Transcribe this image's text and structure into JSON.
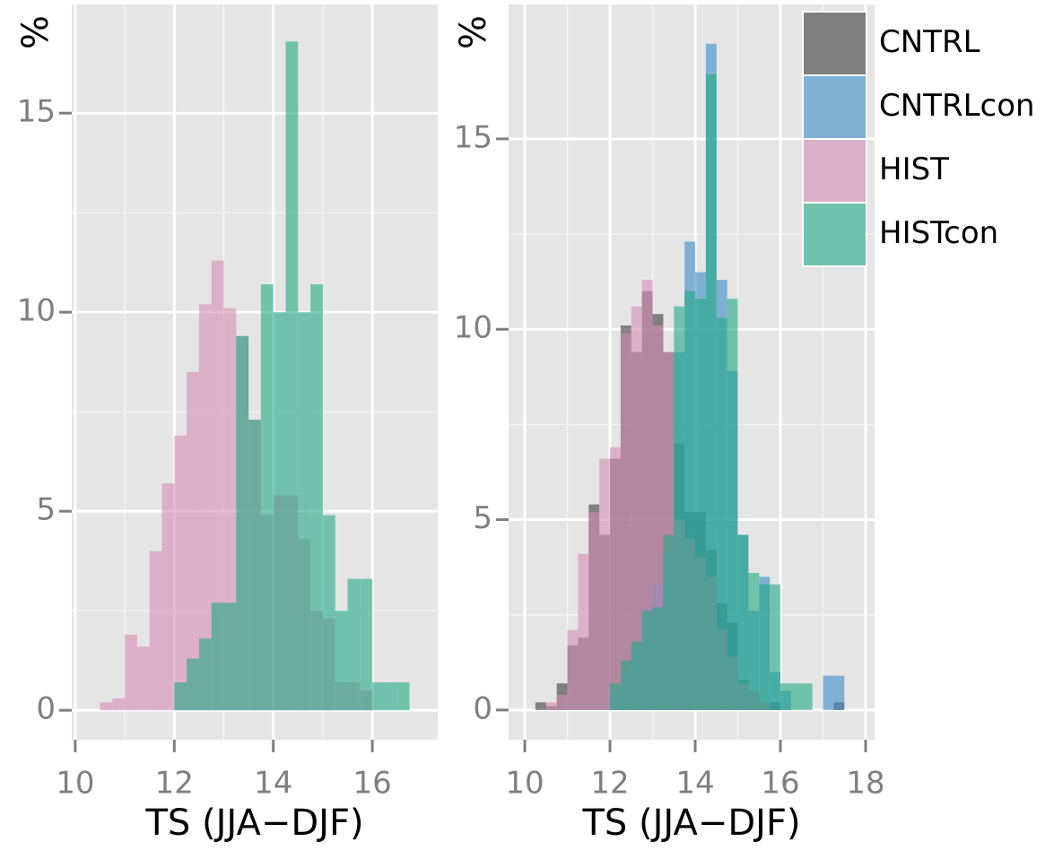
{
  "chart_data": [
    {
      "type": "histogram",
      "x_label": "TS (JJA−DJF)",
      "y_label": "%",
      "bins": [
        10.5,
        10.75,
        11,
        11.25,
        11.5,
        11.75,
        12,
        12.25,
        12.5,
        12.75,
        13,
        13.25,
        13.5,
        13.75,
        14,
        14.25,
        14.5,
        14.75,
        15,
        15.25,
        15.5,
        15.75,
        16,
        16.25,
        16.5,
        16.75
      ],
      "series": [
        {
          "color": "#d68cb6",
          "values": [
            0.2,
            0.3,
            1.9,
            1.6,
            4.0,
            5.7,
            6.9,
            8.5,
            10.2,
            11.3,
            10.1,
            9.4,
            7.3,
            4.9,
            5.4,
            5.4,
            4.3,
            2.5,
            2.3,
            0.7,
            0.7,
            0.5,
            0,
            0,
            0
          ]
        },
        {
          "color": "#22aa85",
          "values": [
            0,
            0,
            0,
            0,
            0,
            0,
            0.7,
            1.3,
            1.8,
            2.7,
            2.7,
            9.4,
            7.3,
            10.7,
            10.0,
            16.8,
            10.0,
            10.7,
            4.9,
            2.5,
            3.3,
            3.3,
            0.7,
            0.7,
            0.7
          ]
        }
      ],
      "xlim": [
        9.93,
        17.32
      ],
      "ylim": [
        -0.74,
        17.73
      ],
      "xticks": [
        10,
        12,
        14,
        16
      ],
      "yticks": [
        0,
        5,
        10,
        15
      ],
      "grid": true
    },
    {
      "type": "histogram",
      "x_label": "TS (JJA−DJF)",
      "y_label": "%",
      "legend": "top-right",
      "bins": [
        10.25,
        10.5,
        10.75,
        11,
        11.25,
        11.5,
        11.75,
        12,
        12.25,
        12.5,
        12.75,
        13,
        13.25,
        13.5,
        13.75,
        14,
        14.25,
        14.5,
        14.75,
        15,
        15.25,
        15.5,
        15.75,
        16,
        16.25,
        16.5,
        16.75,
        17,
        17.25,
        17.5
      ],
      "series": [
        {
          "name": "CNTRL",
          "color": "#3c3c3c",
          "values": [
            0.2,
            0.1,
            0.7,
            1.7,
            1.9,
            5.4,
            4.6,
            6.6,
            10.1,
            9.4,
            11.0,
            10.4,
            9.4,
            7.0,
            5.2,
            5.2,
            4.2,
            2.8,
            2.3,
            0.8,
            0.5,
            0.2,
            0.2,
            0,
            0,
            0,
            0,
            0,
            0.2
          ]
        },
        {
          "name": "CNTRLcon",
          "color": "#3a8cc6",
          "values": [
            0,
            0,
            0,
            0,
            0,
            0,
            0,
            0.5,
            1.0,
            1.7,
            2.7,
            3.3,
            4.2,
            9.4,
            12.3,
            11.5,
            17.5,
            11.3,
            8.9,
            4.6,
            2.6,
            3.5,
            1.0,
            0.5,
            0,
            0,
            0,
            0.9,
            0.9
          ]
        },
        {
          "name": "HIST",
          "color": "#d68cb6",
          "values": [
            0,
            0.2,
            0.4,
            2.1,
            4.1,
            5.2,
            6.6,
            6.9,
            9.9,
            10.6,
            11.3,
            10.1,
            9.4,
            5.0,
            4.5,
            4.0,
            3.5,
            2.1,
            1.4,
            0.7,
            0.5,
            0.2,
            0,
            0,
            0,
            0,
            0,
            0,
            0
          ]
        },
        {
          "name": "HISTcon",
          "color": "#22aa85",
          "values": [
            0,
            0,
            0,
            0,
            0,
            0,
            0,
            0.7,
            1.3,
            1.8,
            2.6,
            2.7,
            4.6,
            10.6,
            11.0,
            10.8,
            16.7,
            10.3,
            10.8,
            4.6,
            3.6,
            3.3,
            3.3,
            0.7,
            0.7,
            0.7,
            0,
            0,
            0
          ]
        }
      ],
      "xlim": [
        9.62,
        18.21
      ],
      "ylim": [
        -0.78,
        18.53
      ],
      "xticks": [
        10,
        12,
        14,
        16,
        18
      ],
      "yticks": [
        0,
        5,
        10,
        15
      ],
      "grid": true
    }
  ]
}
